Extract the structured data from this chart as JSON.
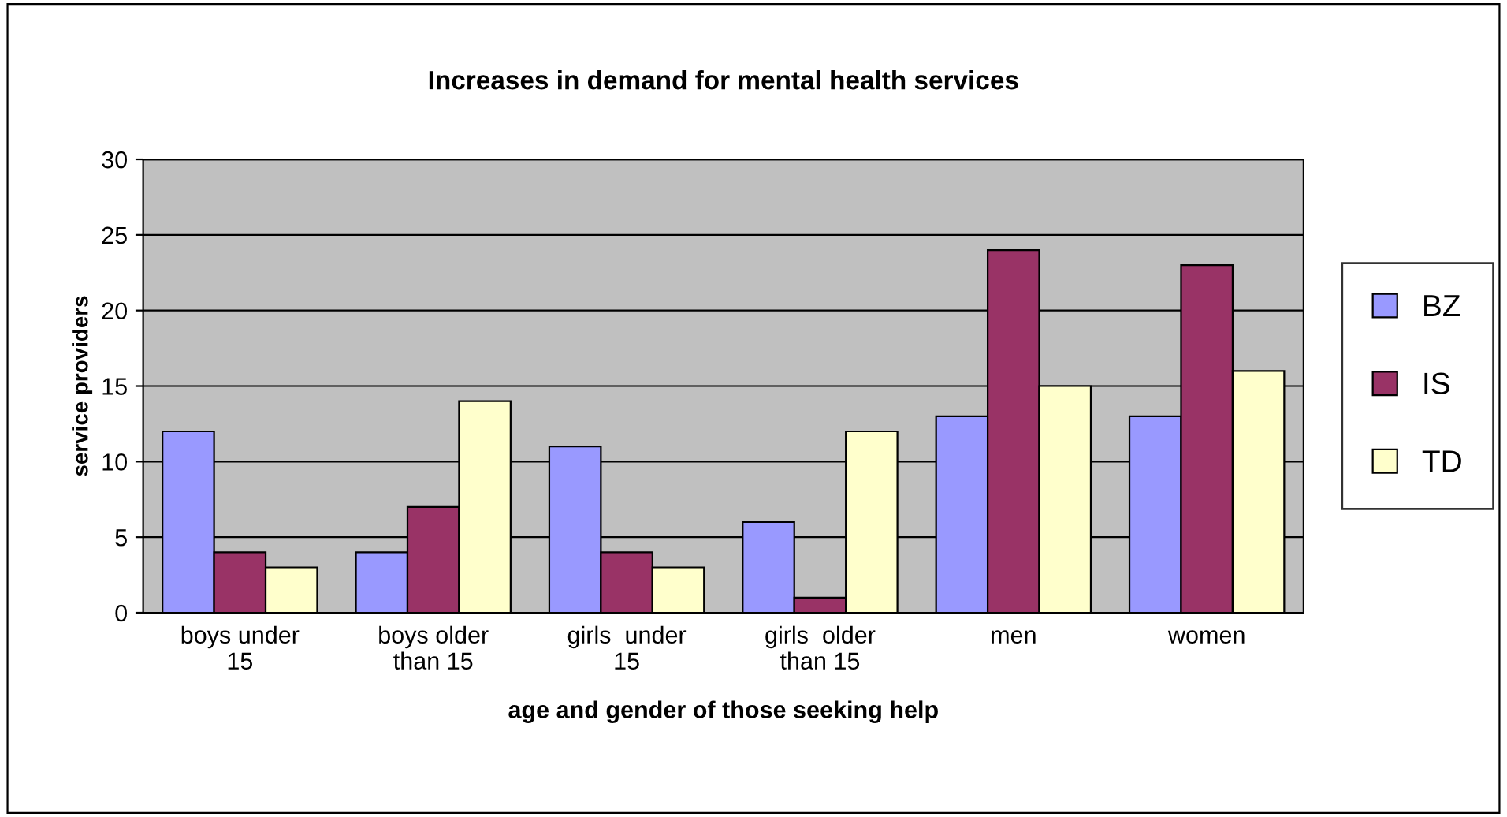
{
  "chart_data": {
    "type": "bar",
    "title": "Increases in demand for mental health services",
    "xlabel": "age and gender of those seeking help",
    "ylabel": "service providers",
    "categories": [
      "boys under\n15",
      "boys older\nthan 15",
      "girls  under\n15",
      "girls  older\nthan 15",
      "men",
      "women"
    ],
    "series": [
      {
        "name": "BZ",
        "color": "#9999ff",
        "values": [
          12,
          4,
          11,
          6,
          13,
          13
        ]
      },
      {
        "name": "IS",
        "color": "#993366",
        "values": [
          4,
          7,
          4,
          1,
          24,
          23
        ]
      },
      {
        "name": "TD",
        "color": "#ffffcc",
        "values": [
          3,
          14,
          3,
          12,
          15,
          16
        ]
      }
    ],
    "ylim": [
      0,
      30
    ],
    "yticks": [
      0,
      5,
      10,
      15,
      20,
      25,
      30
    ],
    "grid": "y",
    "legend": "right"
  }
}
